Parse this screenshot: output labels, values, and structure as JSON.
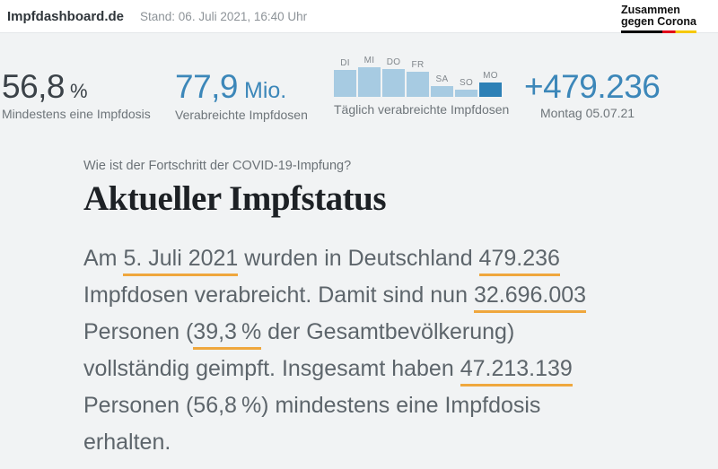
{
  "header": {
    "brand": "Impfdashboard.de",
    "stand": "Stand: 06. Juli 2021, 16:40 Uhr",
    "logo_line1": "Zusammen",
    "logo_line2": "gegen Corona",
    "flag_colors": [
      "#000000",
      "#e1001a",
      "#f6c800"
    ]
  },
  "stats": {
    "first_dose": {
      "value": "56,8",
      "unit": "%",
      "label": "Mindestens eine Impfdosis"
    },
    "total_doses": {
      "value": "77,9",
      "unit": "Mio.",
      "label": "Verabreichte Impfdosen"
    },
    "latest": {
      "value": "+479.236",
      "label": "Montag 05.07.21"
    }
  },
  "chart_data": {
    "type": "bar",
    "title": "Täglich verabreichte Impfdosen",
    "categories": [
      "DI",
      "MI",
      "DO",
      "FR",
      "SA",
      "SO",
      "MO"
    ],
    "values": [
      900000,
      990000,
      930000,
      840000,
      360000,
      250000,
      479236
    ],
    "highlight_index": 6,
    "highlight_value_label": "+479.236",
    "value_axis_shown": false,
    "legend": "none",
    "bar_color": "#a7cbe2",
    "highlight_color": "#2d80b6"
  },
  "main": {
    "kicker": "Wie ist der Fortschritt der COVID-19-Impfung?",
    "title": "Aktueller Impfstatus",
    "paragraph_lines": [
      [
        {
          "t": "Am ",
          "u": false
        },
        {
          "t": "5. Juli 2021",
          "u": true
        },
        {
          "t": " wurden in Deutschland ",
          "u": false
        },
        {
          "t": "479.236",
          "u": true
        }
      ],
      [
        {
          "t": "Impfdosen verabreicht. Damit sind nun ",
          "u": false
        },
        {
          "t": "32.696.003",
          "u": true
        }
      ],
      [
        {
          "t": "Personen (",
          "u": false
        },
        {
          "t": "39,3 %",
          "u": true
        },
        {
          "t": " der Gesamtbevölkerung)",
          "u": false
        }
      ],
      [
        {
          "t": "vollständig geimpft. Insgesamt haben ",
          "u": false
        },
        {
          "t": "47.213.139",
          "u": true
        }
      ],
      [
        {
          "t": "Personen (56,8 %) mindestens eine Impfdosis",
          "u": false
        }
      ],
      [
        {
          "t": "erhalten.",
          "u": false
        }
      ]
    ]
  },
  "colors": {
    "accent_blue": "#3c87b9",
    "bar_light": "#a7cbe2",
    "bar_highlight": "#2d80b6",
    "underline_orange": "#efa73d",
    "page_background": "#f1f3f4",
    "dark_number": "#3b4248",
    "body_text": "#5d656b"
  }
}
